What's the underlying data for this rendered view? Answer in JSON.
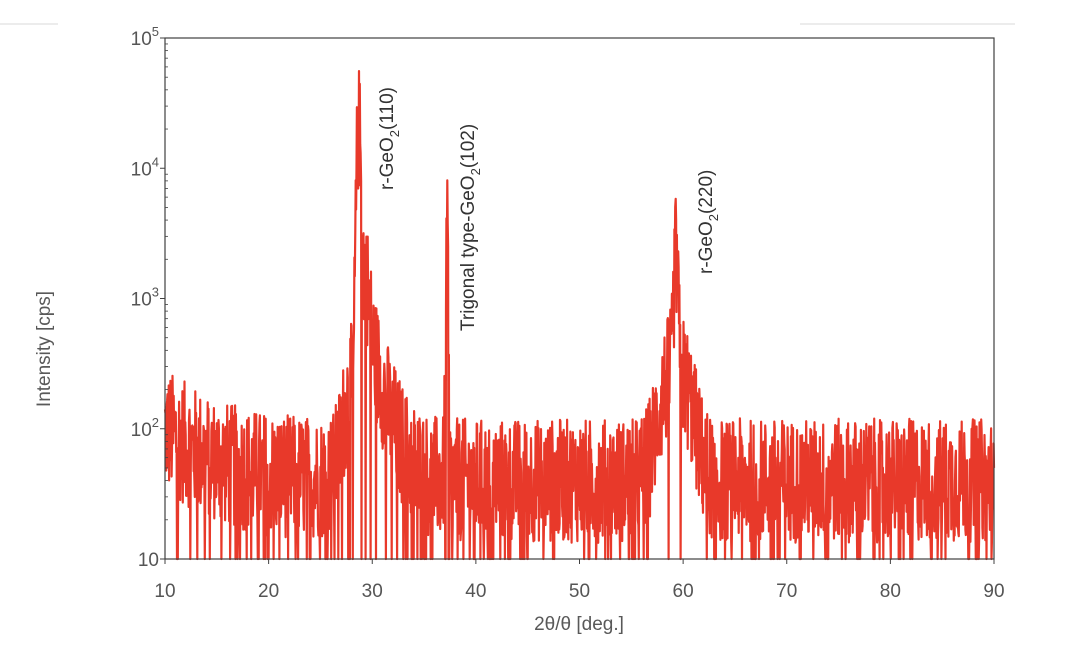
{
  "chart_data": {
    "type": "line",
    "xlabel": "2θ/θ [deg.]",
    "ylabel": "Intensity [cps]",
    "xlim": [
      10,
      90
    ],
    "ylim": [
      10,
      100000
    ],
    "yscale": "log",
    "xticks": [
      10,
      20,
      30,
      40,
      50,
      60,
      70,
      80,
      90
    ],
    "yticks": [
      {
        "value": 10,
        "base": "10",
        "exp": ""
      },
      {
        "value": 100,
        "base": "10",
        "exp": "2"
      },
      {
        "value": 1000,
        "base": "10",
        "exp": "3"
      },
      {
        "value": 10000,
        "base": "10",
        "exp": "4"
      },
      {
        "value": 100000,
        "base": "10",
        "exp": "5"
      }
    ],
    "grid": false,
    "series": [
      {
        "color": "#e8392a",
        "baseline": 40,
        "noise_low": 12,
        "noise_high": 90,
        "peaks": [
          {
            "x": 28.7,
            "y": 20000
          },
          {
            "x": 29.2,
            "y": 1000
          },
          {
            "x": 37.2,
            "y": 3000
          },
          {
            "x": 59.3,
            "y": 1800
          }
        ]
      }
    ],
    "annotations": [
      {
        "x": 28.7,
        "pre": "r-GeO",
        "sub": "2",
        "post": "(110)"
      },
      {
        "x": 37.2,
        "pre": "Trigonal type-GeO",
        "sub": "2",
        "post": "(102)"
      },
      {
        "x": 59.3,
        "pre": "r-GeO",
        "sub": "2",
        "post": "(220)"
      }
    ]
  }
}
